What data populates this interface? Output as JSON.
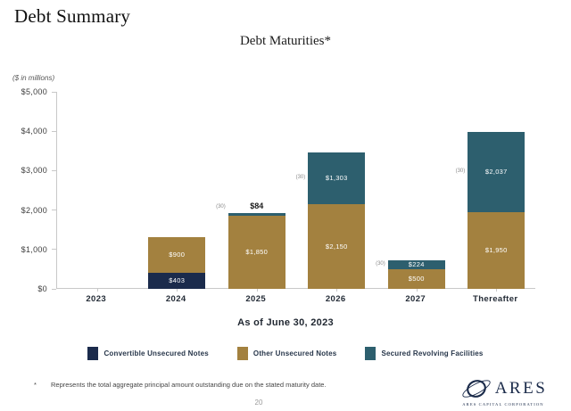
{
  "page": {
    "title": "Debt Summary",
    "as_of_label": "As of June 30, 2023",
    "footnote_symbol": "*",
    "footnote_text": "Represents the total aggregate principal amount outstanding due on the stated maturity date.",
    "page_number": "20"
  },
  "logo": {
    "name": "ARES",
    "subtitle": "ARES CAPITAL CORPORATION",
    "color": "#1b2b4a"
  },
  "legend": [
    {
      "label": "Convertible Unsecured Notes",
      "color": "#1b2b4c"
    },
    {
      "label": "Other Unsecured Notes",
      "color": "#a3813f"
    },
    {
      "label": "Secured Revolving Facilities",
      "color": "#2d5f6e"
    }
  ],
  "chart_data": {
    "type": "stacked-bar",
    "title": "Debt Maturities*",
    "units_label": "($ in millions)",
    "footnote_marker": "(30)",
    "ylim": [
      0,
      5000
    ],
    "y_ticks": [
      0,
      1000,
      2000,
      3000,
      4000,
      5000
    ],
    "y_tick_labels": [
      "$0",
      "$1,000",
      "$2,000",
      "$3,000",
      "$4,000",
      "$5,000"
    ],
    "categories": [
      "2023",
      "2024",
      "2025",
      "2026",
      "2027",
      "Thereafter"
    ],
    "series": [
      {
        "name": "Convertible Unsecured Notes",
        "color": "#1b2b4c",
        "values": [
          0,
          403,
          0,
          0,
          0,
          0
        ],
        "labels": [
          "",
          "$403",
          "",
          "",
          "",
          ""
        ]
      },
      {
        "name": "Other Unsecured Notes",
        "color": "#a3813f",
        "values": [
          0,
          900,
          1850,
          2150,
          500,
          1950
        ],
        "labels": [
          "",
          "$900",
          "$1,850",
          "$2,150",
          "$500",
          "$1,950"
        ]
      },
      {
        "name": "Secured Revolving Facilities",
        "color": "#2d5f6e",
        "values": [
          0,
          0,
          84,
          1303,
          224,
          2037
        ],
        "labels": [
          "",
          "",
          "$84",
          "$1,303",
          "$224",
          "$2,037"
        ],
        "marker_on": [
          false,
          false,
          true,
          true,
          true,
          true
        ]
      }
    ],
    "totals": [
      0,
      1303,
      1934,
      3453,
      724,
      3987
    ],
    "legend_position": "bottom",
    "grid": false
  }
}
